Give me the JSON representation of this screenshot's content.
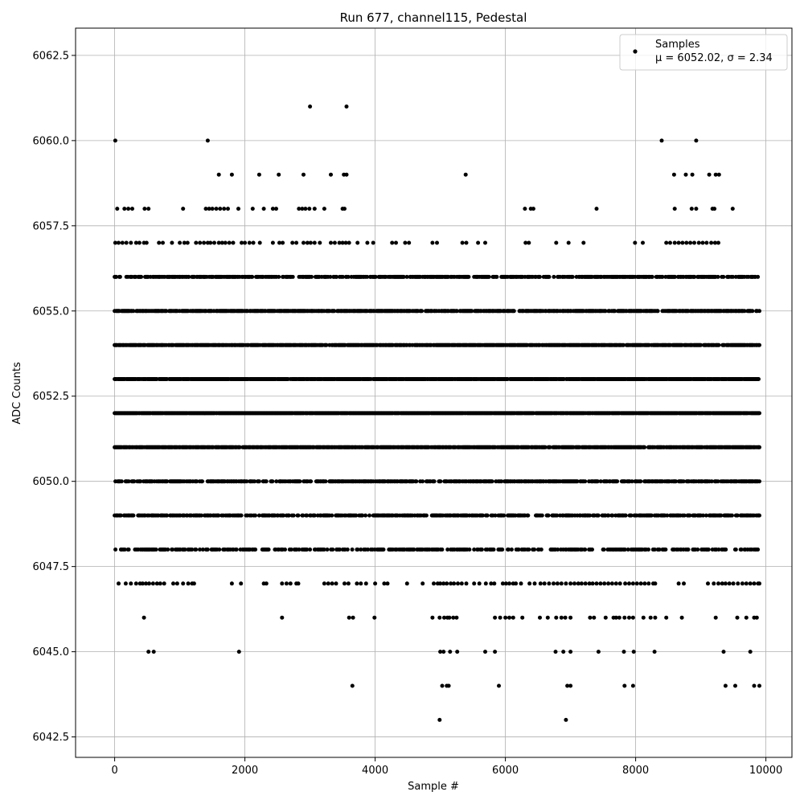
{
  "chart_data": {
    "type": "scatter",
    "title": "Run 677, channel115, Pedestal",
    "xlabel": "Sample #",
    "ylabel": "ADC Counts",
    "xlim": [
      -600,
      10400
    ],
    "ylim": [
      6041.9,
      6063.3
    ],
    "xticks": [
      0,
      2000,
      4000,
      6000,
      8000,
      10000
    ],
    "xtick_labels": [
      "0",
      "2000",
      "4000",
      "6000",
      "8000",
      "10000"
    ],
    "yticks": [
      6042.5,
      6045.0,
      6047.5,
      6050.0,
      6052.5,
      6055.0,
      6057.5,
      6060.0,
      6062.5
    ],
    "ytick_labels": [
      "6042.5",
      "6045.0",
      "6047.5",
      "6050.0",
      "6052.5",
      "6055.0",
      "6057.5",
      "6060.0",
      "6062.5"
    ],
    "grid": true,
    "legend_position": "top-right",
    "marker_color": "#000000",
    "series": [
      {
        "name": "Samples",
        "label_line2": "μ = 6052.02, σ = 2.34",
        "n_samples": 10000,
        "x_range": [
          0,
          9900
        ],
        "outliers": [
          {
            "x": 10,
            "y": 6060
          },
          {
            "x": 1430,
            "y": 6060
          },
          {
            "x": 8400,
            "y": 6060
          },
          {
            "x": 8930,
            "y": 6060
          },
          {
            "x": 3000,
            "y": 6061
          },
          {
            "x": 3560,
            "y": 6061
          },
          {
            "x": 1600,
            "y": 6059
          },
          {
            "x": 1800,
            "y": 6059
          },
          {
            "x": 2220,
            "y": 6059
          },
          {
            "x": 2520,
            "y": 6059
          },
          {
            "x": 2900,
            "y": 6059
          },
          {
            "x": 3320,
            "y": 6059
          },
          {
            "x": 3520,
            "y": 6059
          },
          {
            "x": 3560,
            "y": 6059
          },
          {
            "x": 5390,
            "y": 6059
          },
          {
            "x": 8590,
            "y": 6059
          },
          {
            "x": 8770,
            "y": 6059
          },
          {
            "x": 8870,
            "y": 6059
          },
          {
            "x": 9130,
            "y": 6059
          },
          {
            "x": 9230,
            "y": 6059
          },
          {
            "x": 9280,
            "y": 6059
          },
          {
            "x": 4990,
            "y": 6043
          },
          {
            "x": 6930,
            "y": 6043
          },
          {
            "x": 3650,
            "y": 6044
          },
          {
            "x": 5030,
            "y": 6044
          },
          {
            "x": 5100,
            "y": 6044
          },
          {
            "x": 5130,
            "y": 6044
          },
          {
            "x": 5900,
            "y": 6044
          },
          {
            "x": 6950,
            "y": 6044
          },
          {
            "x": 7000,
            "y": 6044
          },
          {
            "x": 7830,
            "y": 6044
          },
          {
            "x": 7960,
            "y": 6044
          },
          {
            "x": 9380,
            "y": 6044
          },
          {
            "x": 9530,
            "y": 6044
          },
          {
            "x": 9820,
            "y": 6044
          },
          {
            "x": 9900,
            "y": 6044
          },
          {
            "x": 520,
            "y": 6045
          },
          {
            "x": 600,
            "y": 6045
          },
          {
            "x": 1910,
            "y": 6045
          },
          {
            "x": 5000,
            "y": 6045
          },
          {
            "x": 5050,
            "y": 6045
          },
          {
            "x": 5150,
            "y": 6045
          },
          {
            "x": 5260,
            "y": 6045
          },
          {
            "x": 5690,
            "y": 6045
          },
          {
            "x": 5840,
            "y": 6045
          },
          {
            "x": 6770,
            "y": 6045
          },
          {
            "x": 6890,
            "y": 6045
          },
          {
            "x": 7000,
            "y": 6045
          },
          {
            "x": 7430,
            "y": 6045
          },
          {
            "x": 7820,
            "y": 6045
          },
          {
            "x": 7970,
            "y": 6045
          },
          {
            "x": 8290,
            "y": 6045
          },
          {
            "x": 9350,
            "y": 6045
          },
          {
            "x": 9760,
            "y": 6045
          }
        ],
        "sparse_levels": [
          {
            "y": 6058,
            "xs": [
              40,
              150,
              210,
              270,
              460,
              520,
              1050,
              1400,
              1450,
              1500,
              1560,
              1620,
              1680,
              1740,
              1900,
              2120,
              2290,
              2430,
              2480,
              2830,
              2880,
              2930,
              2990,
              3070,
              3220,
              3500,
              3530,
              6300,
              6390,
              6430,
              7400,
              8600,
              8860,
              8930,
              9180,
              9210,
              9490
            ]
          },
          {
            "y": 6057,
            "xs": [
              10,
              60,
              120,
              180,
              250,
              330,
              380,
              450,
              490,
              680,
              740,
              880,
              1000,
              1070,
              1120,
              1250,
              1310,
              1370,
              1430,
              1470,
              1530,
              1600,
              1650,
              1700,
              1760,
              1820,
              1950,
              2000,
              2070,
              2130,
              2230,
              2430,
              2530,
              2580,
              2730,
              2790,
              2900,
              2960,
              3010,
              3070,
              3150,
              3320,
              3380,
              3450,
              3500,
              3550,
              3600,
              3730,
              3880,
              3970,
              4260,
              4320,
              4460,
              4520,
              4880,
              4950,
              5340,
              5400,
              5580,
              5690,
              6310,
              6360,
              6780,
              6970,
              7200,
              7990,
              8110,
              8470,
              8530,
              8600,
              8660,
              8720,
              8780,
              8840,
              8900,
              8970,
              9030,
              9090,
              9160,
              9220,
              9270
            ]
          },
          {
            "y": 6046,
            "xs": [
              450,
              2570,
              3600,
              3660,
              3990,
              4880,
              4990,
              5060,
              5110,
              5140,
              5200,
              5250,
              5840,
              5920,
              6000,
              6060,
              6120,
              6260,
              6530,
              6650,
              6780,
              6860,
              6920,
              7000,
              7300,
              7360,
              7540,
              7660,
              7700,
              7750,
              7830,
              7900,
              7960,
              8120,
              8230,
              8300,
              8470,
              8710,
              9230,
              9560,
              9700,
              9820,
              9860
            ]
          },
          {
            "y": 6047,
            "xs": [
              60,
              170,
              250,
              330,
              390,
              430,
              480,
              530,
              590,
              650,
              700,
              760,
              900,
              960,
              1050,
              1130,
              1190,
              1220,
              1800,
              1940,
              2290,
              2330,
              2570,
              2640,
              2700,
              2790,
              2820,
              3220,
              3280,
              3340,
              3400,
              3530,
              3590,
              3720,
              3780,
              3860,
              4000,
              4140,
              4190,
              4490,
              4730,
              4900,
              4960,
              5000,
              5050,
              5100,
              5160,
              5210,
              5270,
              5330,
              5400,
              5520,
              5600,
              5700,
              5780,
              5830,
              5960,
              6010,
              6060,
              6120,
              6160,
              6240,
              6370,
              6450,
              6540,
              6600,
              6670,
              6740,
              6800,
              6860,
              6930,
              7000,
              7060,
              7120,
              7170,
              7230,
              7290,
              7340,
              7400,
              7460,
              7520,
              7580,
              7640,
              7700,
              7760,
              7840,
              7900,
              7960,
              8020,
              8080,
              8140,
              8200,
              8270,
              8300,
              8660,
              8740,
              9110,
              9200,
              9270,
              9330,
              9380,
              9440,
              9500,
              9570,
              9640,
              9700,
              9760,
              9820,
              9880,
              9900
            ]
          }
        ],
        "dense_levels": [
          {
            "y": 6048,
            "density": 0.45
          },
          {
            "y": 6049,
            "density": 0.55
          },
          {
            "y": 6050,
            "density": 0.62
          },
          {
            "y": 6051,
            "density": 0.85
          },
          {
            "y": 6052,
            "density": 0.95
          },
          {
            "y": 6053,
            "density": 0.92
          },
          {
            "y": 6054,
            "density": 0.8
          },
          {
            "y": 6055,
            "density": 0.72
          },
          {
            "y": 6056,
            "density": 0.6
          }
        ]
      }
    ]
  }
}
